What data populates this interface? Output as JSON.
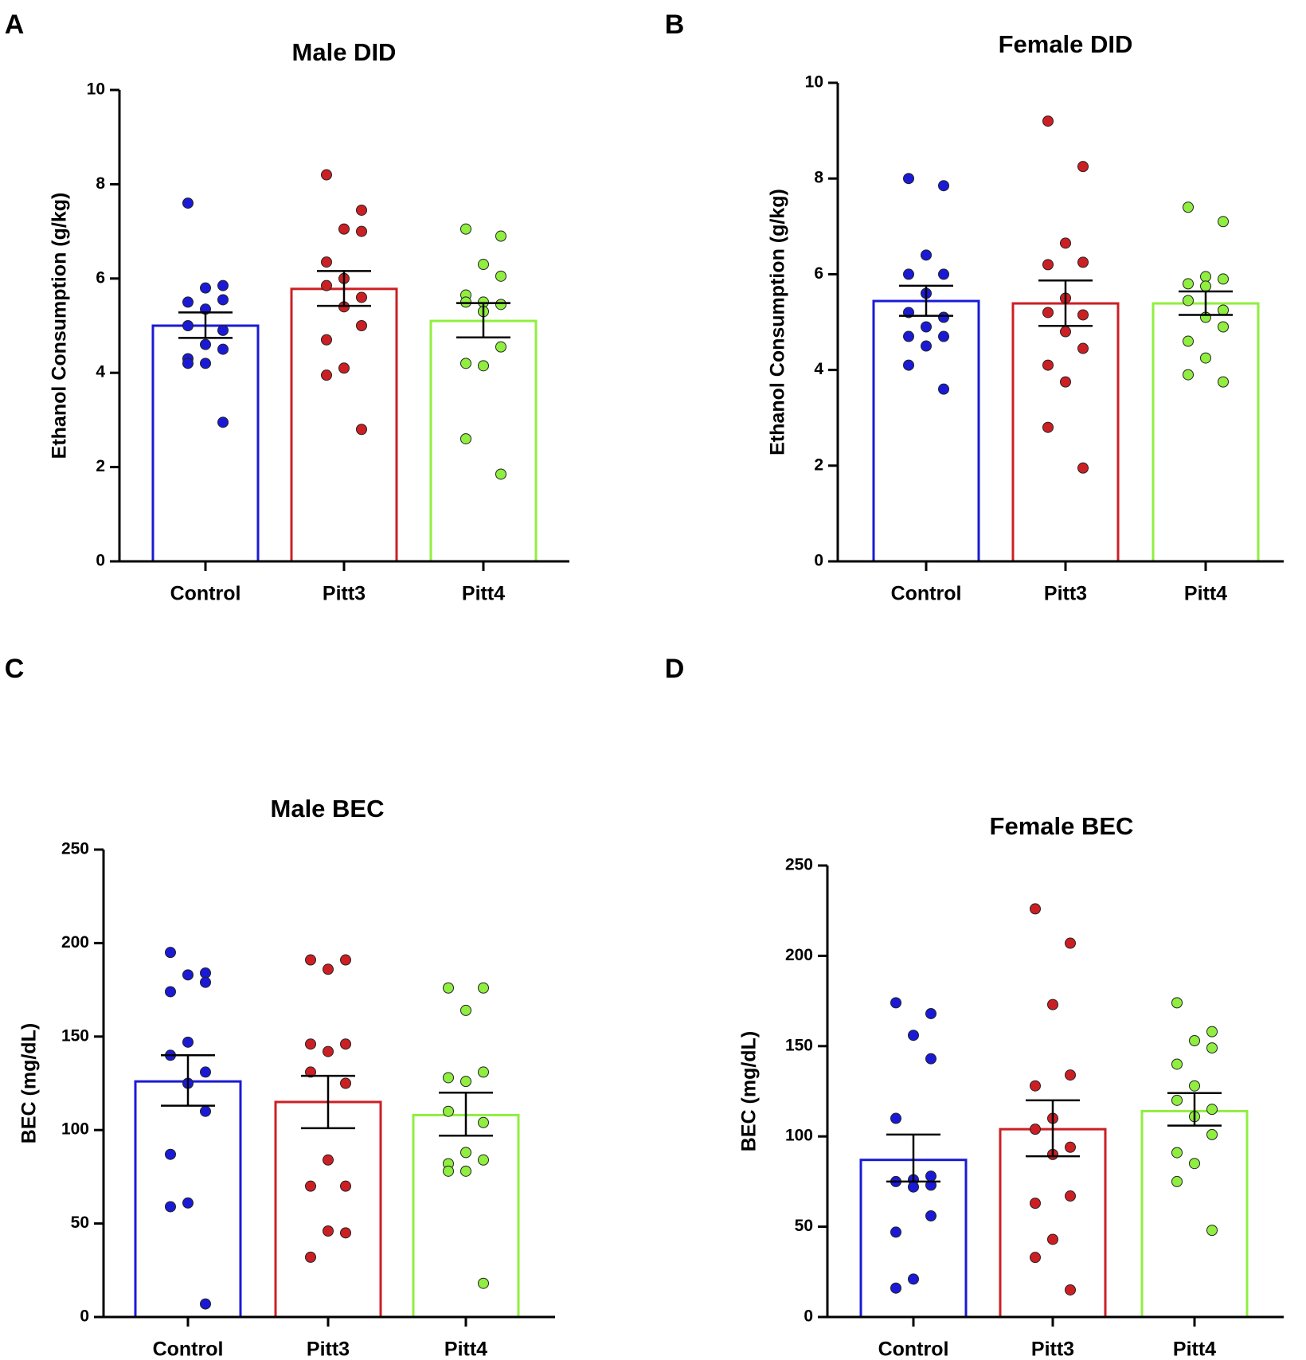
{
  "colors": {
    "axis": "#000000",
    "Control": "#1a1ad6",
    "Pitt3": "#cc1f24",
    "Pitt4": "#90ee40",
    "dot_control_fill": "#1a1ad6",
    "dot_pitt3_fill": "#cc1f24",
    "dot_pitt4_fill": "#90ee40",
    "dot_stroke": "#222222"
  },
  "chart_data": [
    {
      "panel": "A",
      "type": "bar",
      "title": "Male DID",
      "xlabel": "",
      "ylabel": "Ethanol Consumption (g/kg)",
      "ylim": [
        0,
        10
      ],
      "yticks": [
        0,
        2,
        4,
        6,
        8,
        10
      ],
      "tick_labels": [
        "0",
        "2",
        "4",
        "6",
        "8",
        "10"
      ],
      "grid": false,
      "categories": [
        "Control",
        "Pitt3",
        "Pitt4"
      ],
      "values": [
        5.0,
        5.78,
        5.1
      ],
      "error": [
        [
          4.74,
          5.28
        ],
        [
          5.42,
          6.16
        ],
        [
          4.75,
          5.48
        ]
      ],
      "points": [
        [
          7.6,
          5.85,
          5.8,
          5.55,
          5.5,
          5.35,
          5.0,
          4.9,
          4.6,
          4.5,
          4.3,
          4.2,
          4.2,
          2.95
        ],
        [
          8.2,
          7.45,
          7.05,
          7.0,
          6.35,
          6.0,
          5.85,
          5.6,
          5.4,
          5.0,
          4.7,
          4.1,
          3.95,
          2.8
        ],
        [
          7.05,
          6.9,
          6.3,
          6.05,
          5.65,
          5.5,
          5.5,
          5.45,
          5.3,
          4.55,
          4.2,
          4.15,
          2.6,
          1.85
        ]
      ]
    },
    {
      "panel": "B",
      "type": "bar",
      "title": "Female DID",
      "xlabel": "",
      "ylabel": "Ethanol Consumption (g/kg)",
      "ylim": [
        0,
        10
      ],
      "yticks": [
        0,
        2,
        4,
        6,
        8,
        10
      ],
      "tick_labels": [
        "0",
        "2",
        "4",
        "6",
        "8",
        "10"
      ],
      "grid": false,
      "categories": [
        "Control",
        "Pitt3",
        "Pitt4"
      ],
      "values": [
        5.44,
        5.39,
        5.39
      ],
      "error": [
        [
          5.13,
          5.76
        ],
        [
          4.92,
          5.87
        ],
        [
          5.15,
          5.64
        ]
      ],
      "points": [
        [
          8.0,
          7.85,
          6.4,
          6.0,
          6.0,
          5.6,
          5.2,
          5.1,
          4.9,
          4.7,
          4.7,
          4.5,
          4.1,
          3.6
        ],
        [
          9.2,
          8.25,
          6.65,
          6.25,
          6.2,
          5.5,
          5.2,
          5.15,
          4.8,
          4.45,
          4.1,
          3.75,
          2.8,
          1.95
        ],
        [
          7.4,
          7.1,
          5.95,
          5.9,
          5.8,
          5.75,
          5.45,
          5.25,
          5.1,
          4.9,
          4.6,
          4.25,
          3.9,
          3.75
        ]
      ]
    },
    {
      "panel": "C",
      "type": "bar",
      "title": "Male BEC",
      "xlabel": "",
      "ylabel": "BEC (mg/dL)",
      "ylim": [
        0,
        250
      ],
      "yticks": [
        0,
        50,
        100,
        150,
        200,
        250
      ],
      "tick_labels": [
        "0",
        "50",
        "100",
        "150",
        "200",
        "250"
      ],
      "grid": false,
      "categories": [
        "Control",
        "Pitt3",
        "Pitt4"
      ],
      "values": [
        126,
        115,
        108
      ],
      "error": [
        [
          113,
          140
        ],
        [
          101,
          129
        ],
        [
          97,
          120
        ]
      ],
      "points": [
        [
          195,
          184,
          183,
          179,
          174,
          147,
          140,
          131,
          125,
          110,
          87,
          61,
          59,
          7
        ],
        [
          191,
          191,
          186,
          146,
          146,
          142,
          131,
          125,
          84,
          70,
          70,
          46,
          32,
          45
        ],
        [
          176,
          176,
          164,
          131,
          128,
          126,
          110,
          104,
          88,
          84,
          82,
          78,
          78,
          18
        ]
      ]
    },
    {
      "panel": "D",
      "type": "bar",
      "title": "Female BEC",
      "xlabel": "",
      "ylabel": "BEC (mg/dL)",
      "ylim": [
        0,
        250
      ],
      "yticks": [
        0,
        50,
        100,
        150,
        200,
        250
      ],
      "tick_labels": [
        "0",
        "50",
        "100",
        "150",
        "200",
        "250"
      ],
      "grid": false,
      "categories": [
        "Control",
        "Pitt3",
        "Pitt4"
      ],
      "values": [
        87,
        104,
        114
      ],
      "error": [
        [
          75,
          101
        ],
        [
          89,
          120
        ],
        [
          106,
          124
        ]
      ],
      "points": [
        [
          174,
          168,
          156,
          143,
          110,
          76,
          75,
          73,
          72,
          56,
          47,
          21,
          16,
          78
        ],
        [
          226,
          207,
          173,
          134,
          128,
          110,
          104,
          94,
          90,
          67,
          63,
          43,
          33,
          15
        ],
        [
          174,
          158,
          153,
          149,
          140,
          128,
          120,
          115,
          111,
          101,
          91,
          85,
          75,
          48
        ]
      ]
    }
  ],
  "panel_labels": [
    "A",
    "B",
    "C",
    "D"
  ]
}
